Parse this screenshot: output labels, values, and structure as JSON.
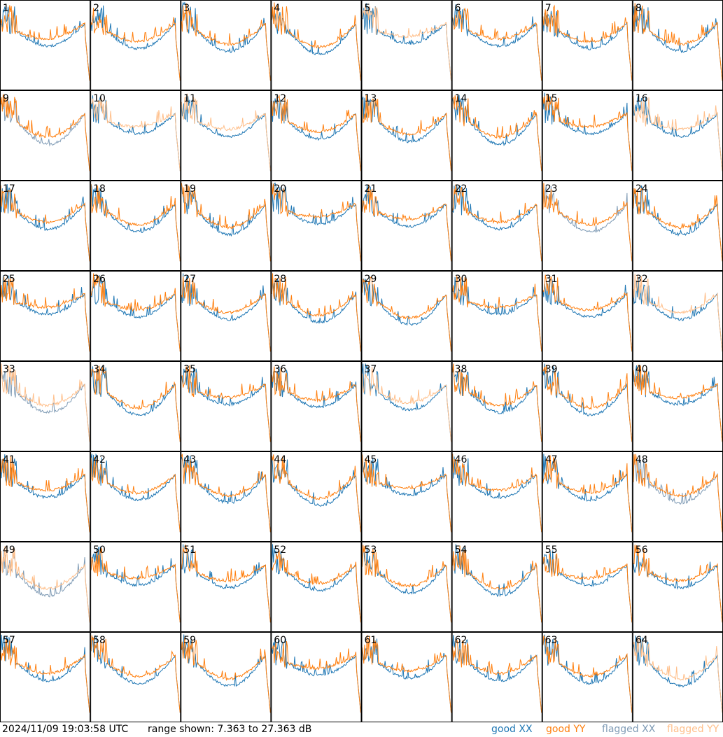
{
  "footer": {
    "timestamp": "2024/11/09 19:03:58 UTC",
    "range_text": "range shown: 7.363 to 27.363 dB"
  },
  "legend": [
    {
      "label": "good XX",
      "color": "#1f77b4"
    },
    {
      "label": "good YY",
      "color": "#ff7f0e"
    },
    {
      "label": "flagged XX",
      "color": "#7f9bb5"
    },
    {
      "label": "flagged YY",
      "color": "#ffbf8a"
    }
  ],
  "chart_data": {
    "type": "line",
    "grid_rows": 8,
    "grid_cols": 8,
    "y_range_db": [
      7.363,
      27.363
    ],
    "series_names": [
      "good XX",
      "good YY",
      "flagged XX",
      "flagged YY"
    ],
    "panels": [
      {
        "id": "1",
        "xx": "good",
        "yy": "good"
      },
      {
        "id": "2",
        "xx": "good",
        "yy": "good"
      },
      {
        "id": "3",
        "xx": "good",
        "yy": "good"
      },
      {
        "id": "4",
        "xx": "good",
        "yy": "good"
      },
      {
        "id": "5",
        "xx": "good",
        "yy": "flagged"
      },
      {
        "id": "6",
        "xx": "good",
        "yy": "good"
      },
      {
        "id": "7",
        "xx": "good",
        "yy": "good"
      },
      {
        "id": "8",
        "xx": "good",
        "yy": "good"
      },
      {
        "id": "9",
        "xx": "flagged",
        "yy": "good"
      },
      {
        "id": "10",
        "xx": "good",
        "yy": "flagged"
      },
      {
        "id": "11",
        "xx": "good",
        "yy": "flagged"
      },
      {
        "id": "12",
        "xx": "good",
        "yy": "good"
      },
      {
        "id": "13",
        "xx": "good",
        "yy": "good"
      },
      {
        "id": "14",
        "xx": "good",
        "yy": "good"
      },
      {
        "id": "15",
        "xx": "good",
        "yy": "good"
      },
      {
        "id": "16",
        "xx": "good",
        "yy": "flagged"
      },
      {
        "id": "17",
        "xx": "good",
        "yy": "good"
      },
      {
        "id": "18",
        "xx": "good",
        "yy": "good"
      },
      {
        "id": "19",
        "xx": "good",
        "yy": "good"
      },
      {
        "id": "20",
        "xx": "good",
        "yy": "good"
      },
      {
        "id": "21",
        "xx": "good",
        "yy": "good"
      },
      {
        "id": "22",
        "xx": "good",
        "yy": "good"
      },
      {
        "id": "23",
        "xx": "flagged",
        "yy": "good"
      },
      {
        "id": "24",
        "xx": "good",
        "yy": "good"
      },
      {
        "id": "25",
        "xx": "good",
        "yy": "good"
      },
      {
        "id": "26",
        "xx": "good",
        "yy": "good"
      },
      {
        "id": "27",
        "xx": "good",
        "yy": "good"
      },
      {
        "id": "28",
        "xx": "good",
        "yy": "good"
      },
      {
        "id": "29",
        "xx": "good",
        "yy": "good"
      },
      {
        "id": "30",
        "xx": "good",
        "yy": "good"
      },
      {
        "id": "31",
        "xx": "good",
        "yy": "good"
      },
      {
        "id": "32",
        "xx": "good",
        "yy": "flagged"
      },
      {
        "id": "33",
        "xx": "flagged",
        "yy": "flagged"
      },
      {
        "id": "34",
        "xx": "good",
        "yy": "good"
      },
      {
        "id": "35",
        "xx": "good",
        "yy": "good"
      },
      {
        "id": "36",
        "xx": "good",
        "yy": "good"
      },
      {
        "id": "37",
        "xx": "good",
        "yy": "flagged"
      },
      {
        "id": "38",
        "xx": "good",
        "yy": "good"
      },
      {
        "id": "39",
        "xx": "good",
        "yy": "good"
      },
      {
        "id": "40",
        "xx": "good",
        "yy": "good"
      },
      {
        "id": "41",
        "xx": "good",
        "yy": "good"
      },
      {
        "id": "42",
        "xx": "good",
        "yy": "good"
      },
      {
        "id": "43",
        "xx": "good",
        "yy": "good"
      },
      {
        "id": "44",
        "xx": "good",
        "yy": "good"
      },
      {
        "id": "45",
        "xx": "good",
        "yy": "good"
      },
      {
        "id": "46",
        "xx": "good",
        "yy": "good"
      },
      {
        "id": "47",
        "xx": "good",
        "yy": "good"
      },
      {
        "id": "48",
        "xx": "flagged",
        "yy": "good"
      },
      {
        "id": "49",
        "xx": "flagged",
        "yy": "flagged"
      },
      {
        "id": "50",
        "xx": "good",
        "yy": "good"
      },
      {
        "id": "51",
        "xx": "good",
        "yy": "good"
      },
      {
        "id": "52",
        "xx": "good",
        "yy": "good"
      },
      {
        "id": "53",
        "xx": "good",
        "yy": "good"
      },
      {
        "id": "54",
        "xx": "good",
        "yy": "good"
      },
      {
        "id": "55",
        "xx": "good",
        "yy": "good"
      },
      {
        "id": "56",
        "xx": "good",
        "yy": "good"
      },
      {
        "id": "57",
        "xx": "good",
        "yy": "good"
      },
      {
        "id": "58",
        "xx": "good",
        "yy": "good"
      },
      {
        "id": "59",
        "xx": "good",
        "yy": "good"
      },
      {
        "id": "60",
        "xx": "good",
        "yy": "good"
      },
      {
        "id": "61",
        "xx": "good",
        "yy": "good"
      },
      {
        "id": "62",
        "xx": "good",
        "yy": "good"
      },
      {
        "id": "63",
        "xx": "good",
        "yy": "good"
      },
      {
        "id": "64",
        "xx": "good",
        "yy": "flagged"
      }
    ]
  }
}
